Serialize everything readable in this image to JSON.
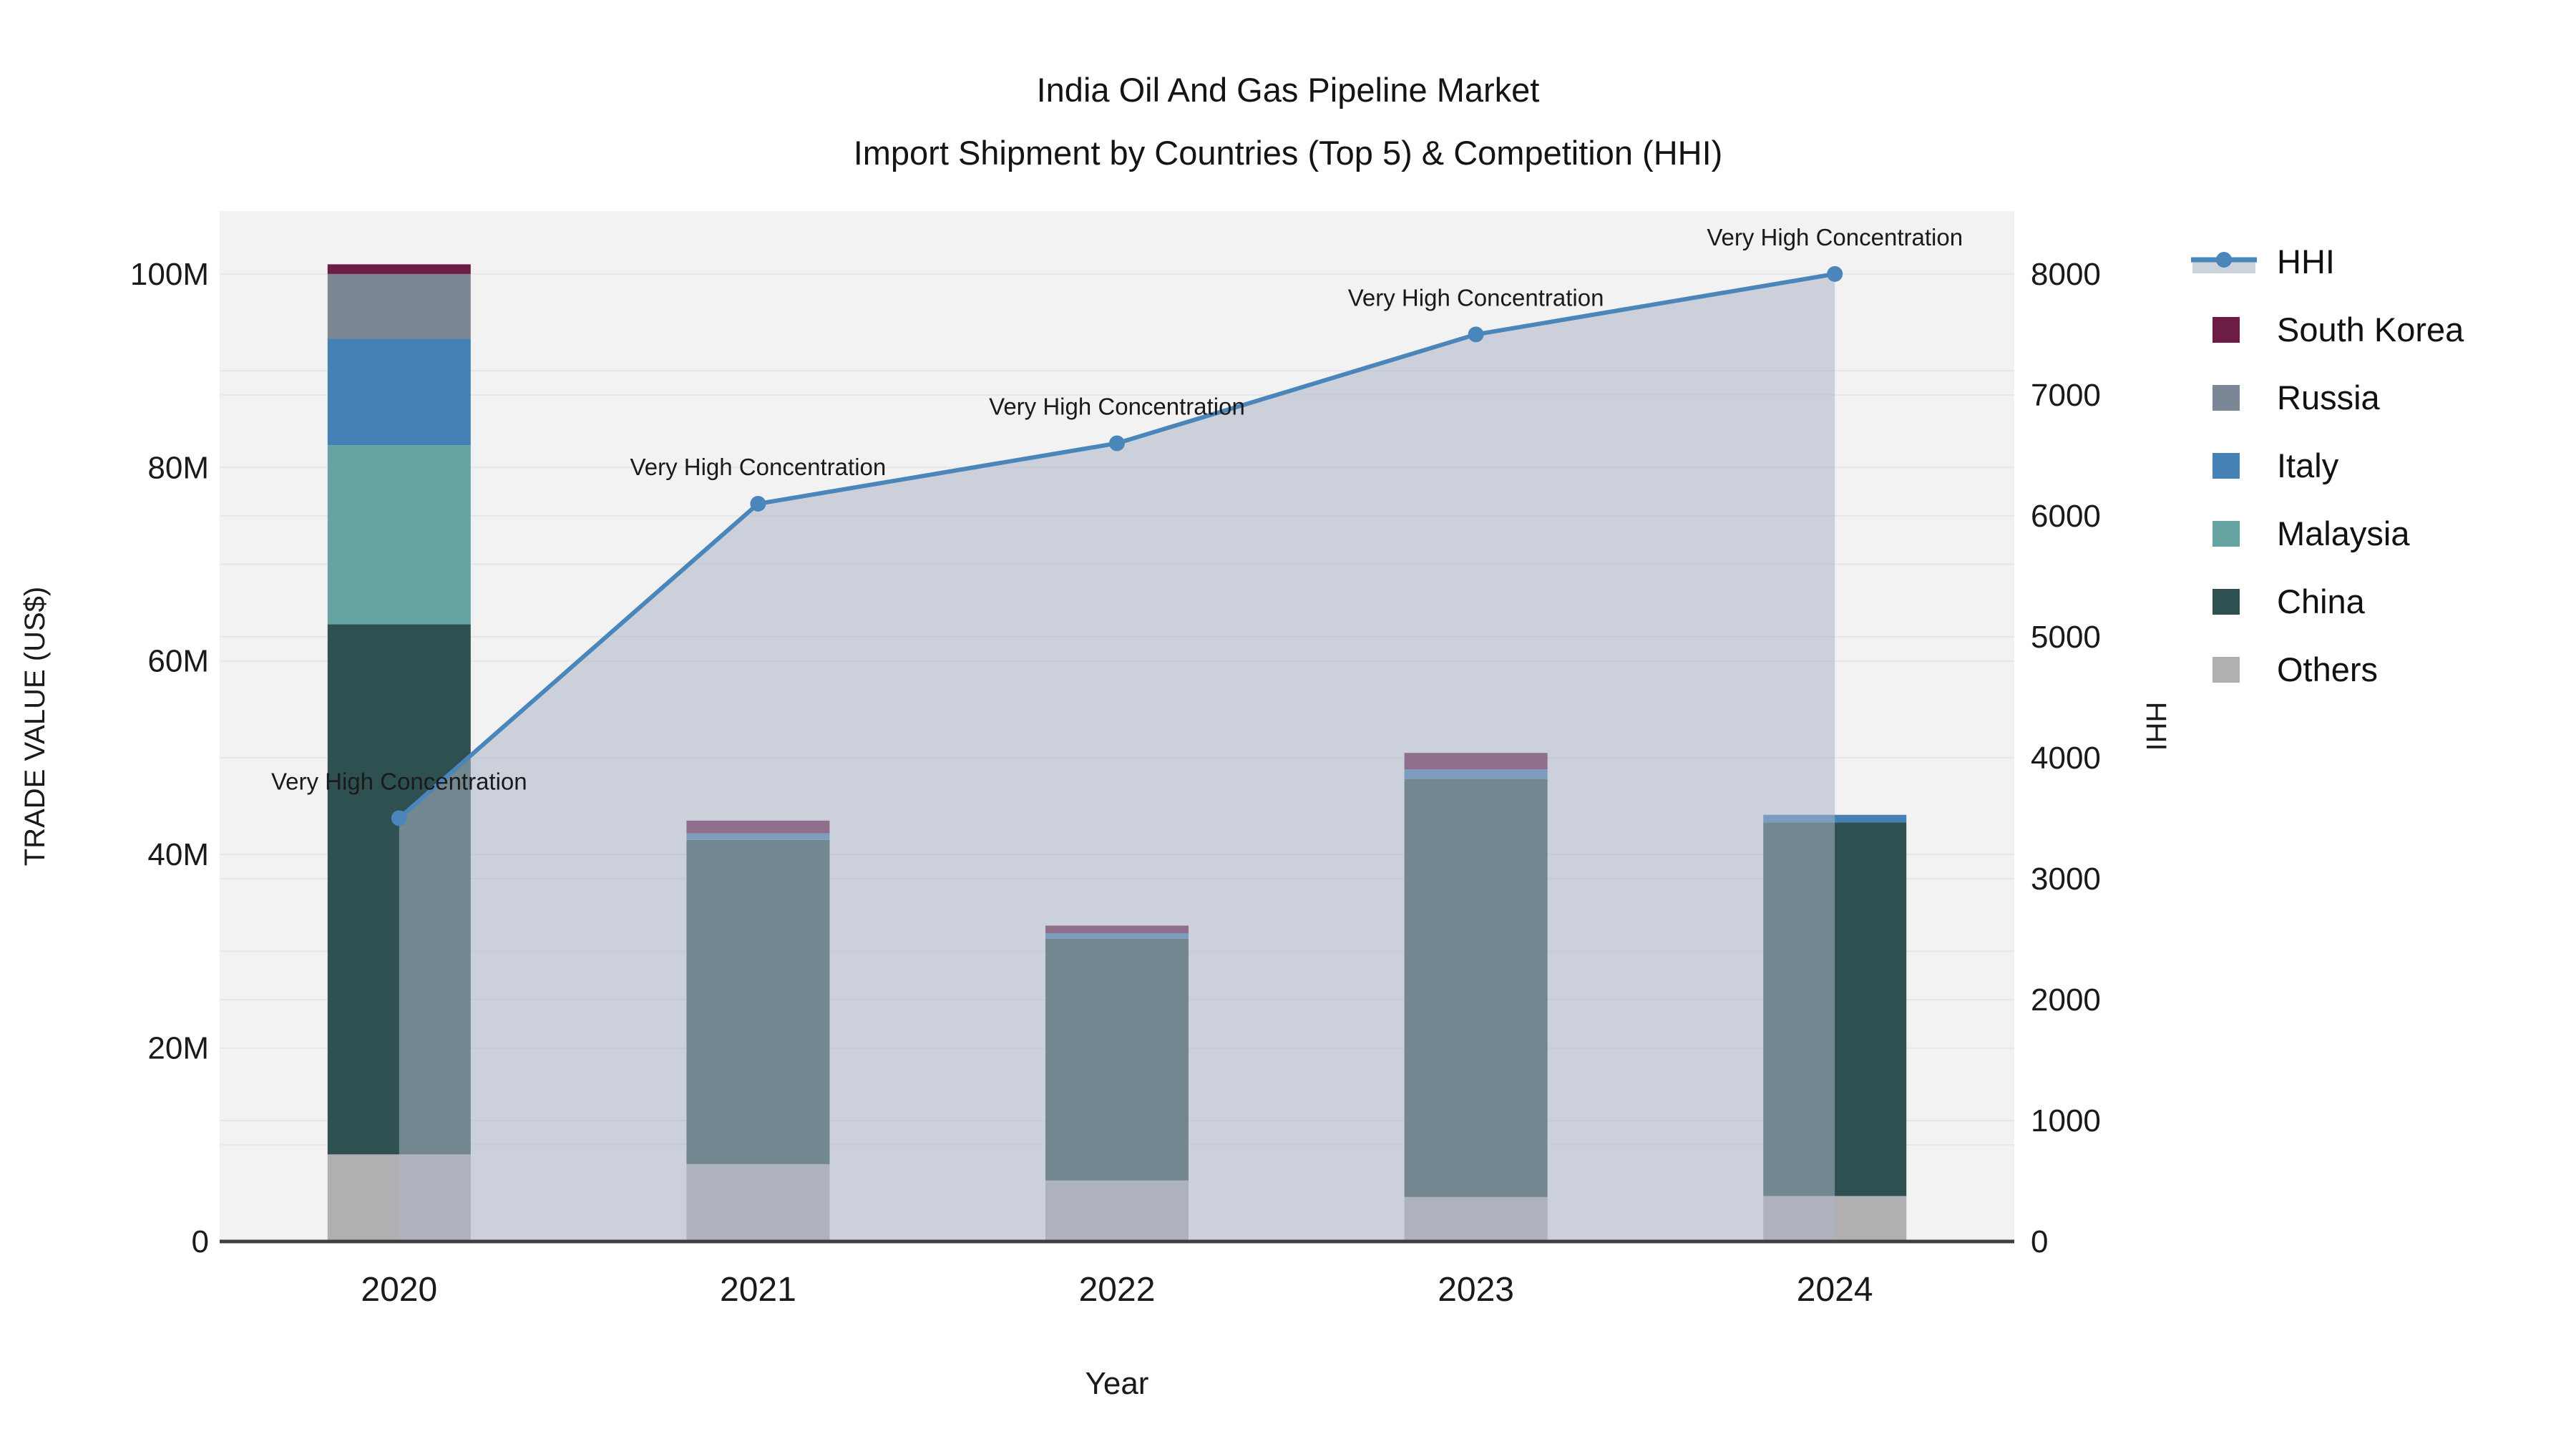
{
  "title": {
    "line1": "India Oil And Gas Pipeline Market",
    "line2": "Import Shipment by Countries (Top 5) & Competition (HHI)"
  },
  "axes": {
    "x_title": "Year",
    "y_left_title": "TRADE VALUE (US$)",
    "y_right_title": "HHI",
    "y_left_tick_values": [
      0,
      20,
      40,
      60,
      80,
      100
    ],
    "y_left_tick_labels": [
      "0",
      "20M",
      "40M",
      "60M",
      "80M",
      "100M"
    ],
    "y_right_tick_values": [
      0,
      1000,
      2000,
      3000,
      4000,
      5000,
      6000,
      7000,
      8000
    ],
    "y_right_tick_labels": [
      "0",
      "1000",
      "2000",
      "3000",
      "4000",
      "5000",
      "6000",
      "7000",
      "8000"
    ]
  },
  "legend": {
    "items": [
      {
        "label": "HHI",
        "type": "line",
        "color": "#4a86ba"
      },
      {
        "label": "South Korea",
        "type": "box",
        "color": "#6d1c45"
      },
      {
        "label": "Russia",
        "type": "box",
        "color": "#7b8795"
      },
      {
        "label": "Italy",
        "type": "box",
        "color": "#4581b5"
      },
      {
        "label": "Malaysia",
        "type": "box",
        "color": "#66a3a3"
      },
      {
        "label": "China",
        "type": "box",
        "color": "#2f5050"
      },
      {
        "label": "Others",
        "type": "box",
        "color": "#b0b0b2"
      }
    ]
  },
  "chart_data": {
    "type": "bar+line",
    "title": "India Oil And Gas Pipeline Market - Import Shipment by Countries (Top 5) & Competition (HHI)",
    "xlabel": "Year",
    "ylabel_left": "TRADE VALUE (US$)",
    "ylabel_right": "HHI",
    "categories": [
      "2020",
      "2021",
      "2022",
      "2023",
      "2024"
    ],
    "bar_unit": "million US$",
    "series": [
      {
        "name": "Others",
        "color": "#b0b0b2",
        "values": [
          9.0,
          8.0,
          6.3,
          4.6,
          4.7
        ]
      },
      {
        "name": "China",
        "color": "#2f5050",
        "values": [
          54.8,
          33.5,
          25.0,
          43.2,
          38.6
        ]
      },
      {
        "name": "Malaysia",
        "color": "#66a3a3",
        "values": [
          18.5,
          0,
          0,
          0,
          0
        ]
      },
      {
        "name": "Italy",
        "color": "#4581b5",
        "values": [
          11.0,
          0.7,
          0.55,
          1.0,
          0.8
        ]
      },
      {
        "name": "Russia",
        "color": "#7b8795",
        "values": [
          6.7,
          0,
          0,
          0,
          0
        ]
      },
      {
        "name": "South Korea",
        "color": "#6d1c45",
        "values": [
          1.0,
          1.3,
          0.8,
          1.7,
          0
        ]
      }
    ],
    "bar_totals": [
      101.0,
      43.5,
      32.65,
      50.5,
      44.1
    ],
    "line_series": {
      "name": "HHI",
      "color": "#4a86ba",
      "axis": "right",
      "values": [
        3500,
        6100,
        6600,
        7500,
        8000
      ]
    },
    "annotations": [
      {
        "category": "2020",
        "text": "Very High Concentration"
      },
      {
        "category": "2021",
        "text": "Very High Concentration"
      },
      {
        "category": "2022",
        "text": "Very High Concentration"
      },
      {
        "category": "2023",
        "text": "Very High Concentration"
      },
      {
        "category": "2024",
        "text": "Very High Concentration"
      }
    ],
    "ylim_left": [
      0,
      106.5
    ],
    "ylim_right": [
      0,
      8520
    ],
    "grid": true,
    "legend_position": "right",
    "style": {
      "plot_bg": "#f2f2f3",
      "grid_color": "#e7e7e9",
      "axis_line_color": "#3f3f3f",
      "area_fill": "rgba(172,181,196,0.55)",
      "legend_band_fill": "#cdd3dc"
    }
  }
}
